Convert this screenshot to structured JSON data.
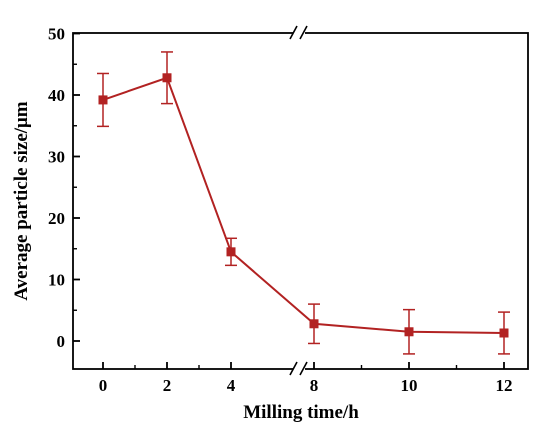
{
  "chart_data": {
    "type": "line",
    "xlabel": "Milling time/h",
    "ylabel": "Average particle size/μm",
    "x_tick_labels": [
      "0",
      "2",
      "4",
      "8",
      "10",
      "12"
    ],
    "y_tick_labels": [
      "0",
      "10",
      "20",
      "30",
      "40",
      "50"
    ],
    "ylim": [
      -5,
      50
    ],
    "x_axis_break": "between 4 and 8 (//)",
    "grid": false,
    "legend": "none",
    "series": [
      {
        "x": [
          0,
          2,
          4,
          8,
          10,
          12
        ],
        "values": [
          39.2,
          42.8,
          14.5,
          2.8,
          1.5,
          1.3
        ],
        "error": [
          4.3,
          4.2,
          2.2,
          3.2,
          3.6,
          3.4
        ],
        "color": "#b22222",
        "marker": "square"
      }
    ]
  }
}
